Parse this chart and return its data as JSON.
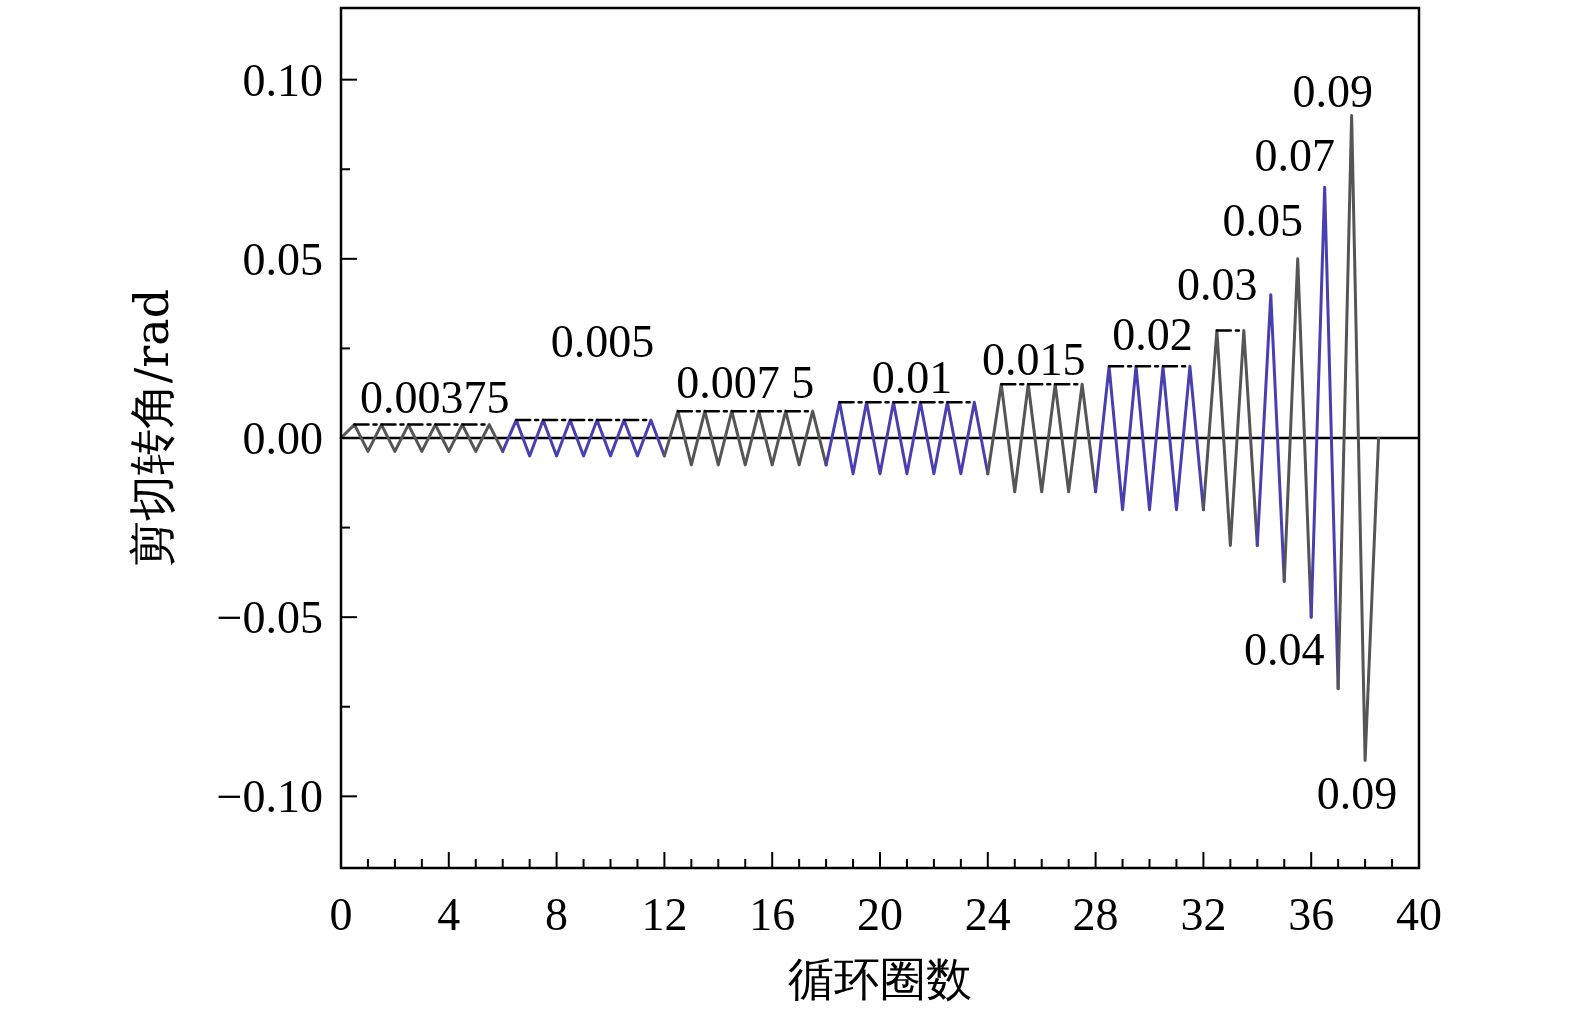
{
  "chart_data": {
    "type": "line",
    "xlabel": "循环圈数",
    "ylabel": "剪切转角/rad",
    "xlim": [
      0,
      40
    ],
    "ylim": [
      -0.12,
      0.12
    ],
    "xticks": [
      0,
      {
        "value": 1,
        "label": null
      },
      {
        "value": 2,
        "label": null
      },
      {
        "value": 3,
        "label": null
      },
      4,
      {
        "value": 5,
        "label": null
      },
      {
        "value": 6,
        "label": null
      },
      {
        "value": 7,
        "label": null
      },
      8,
      {
        "value": 9,
        "label": null
      },
      {
        "value": 10,
        "label": null
      },
      {
        "value": 11,
        "label": null
      },
      12,
      {
        "value": 13,
        "label": null
      },
      {
        "value": 14,
        "label": null
      },
      {
        "value": 15,
        "label": null
      },
      16,
      {
        "value": 17,
        "label": null
      },
      {
        "value": 18,
        "label": null
      },
      {
        "value": 19,
        "label": null
      },
      20,
      {
        "value": 21,
        "label": null
      },
      {
        "value": 22,
        "label": null
      },
      {
        "value": 23,
        "label": null
      },
      24,
      {
        "value": 25,
        "label": null
      },
      {
        "value": 26,
        "label": null
      },
      {
        "value": 27,
        "label": null
      },
      28,
      {
        "value": 29,
        "label": null
      },
      {
        "value": 30,
        "label": null
      },
      {
        "value": 31,
        "label": null
      },
      32,
      {
        "value": 33,
        "label": null
      },
      {
        "value": 34,
        "label": null
      },
      {
        "value": 35,
        "label": null
      },
      36,
      {
        "value": 37,
        "label": null
      },
      {
        "value": 38,
        "label": null
      },
      {
        "value": 39,
        "label": null
      },
      40
    ],
    "yticks": [
      {
        "value": -0.1,
        "label": "−0.10"
      },
      {
        "value": -0.075,
        "label": null
      },
      {
        "value": -0.05,
        "label": "−0.05"
      },
      {
        "value": -0.025,
        "label": null
      },
      {
        "value": 0,
        "label": "0.00"
      },
      {
        "value": 0.025,
        "label": null
      },
      {
        "value": 0.05,
        "label": "0.05"
      },
      {
        "value": 0.075,
        "label": null
      },
      {
        "value": 0.1,
        "label": "0.10"
      }
    ],
    "grid": false,
    "marker": "none",
    "ref_lines": [
      {
        "axis": "y",
        "value": 0,
        "color": "#000000",
        "line_style": "solid"
      }
    ],
    "series": [
      {
        "color": "#555555",
        "x": [
          0,
          0.5,
          1,
          1.5,
          2,
          2.5,
          3,
          3.5,
          4,
          4.5,
          5,
          5.5,
          6
        ],
        "values": [
          0,
          0.00375,
          -0.00375,
          0.00375,
          -0.00375,
          0.00375,
          -0.00375,
          0.00375,
          -0.00375,
          0.00375,
          -0.00375,
          0.00375,
          -0.00375
        ]
      },
      {
        "color": "#4a3fb0",
        "x": [
          6,
          6.5,
          7,
          7.5,
          8,
          8.5,
          9,
          9.5,
          10,
          10.5,
          11,
          11.5,
          12
        ],
        "values": [
          -0.00375,
          0.005,
          -0.005,
          0.005,
          -0.005,
          0.005,
          -0.005,
          0.005,
          -0.005,
          0.005,
          -0.005,
          0.005,
          -0.005
        ]
      },
      {
        "color": "#555555",
        "x": [
          12,
          12.5,
          13,
          13.5,
          14,
          14.5,
          15,
          15.5,
          16,
          16.5,
          17,
          17.5,
          18
        ],
        "values": [
          -0.005,
          0.0075,
          -0.0075,
          0.0075,
          -0.0075,
          0.0075,
          -0.0075,
          0.0075,
          -0.0075,
          0.0075,
          -0.0075,
          0.0075,
          -0.0075
        ]
      },
      {
        "color": "#4a3fb0",
        "x": [
          18,
          18.5,
          19,
          19.5,
          20,
          20.5,
          21,
          21.5,
          22,
          22.5,
          23,
          23.5,
          24
        ],
        "values": [
          -0.0075,
          0.01,
          -0.01,
          0.01,
          -0.01,
          0.01,
          -0.01,
          0.01,
          -0.01,
          0.01,
          -0.01,
          0.01,
          -0.01
        ]
      },
      {
        "color": "#555555",
        "x": [
          24,
          24.5,
          25,
          25.5,
          26,
          26.5,
          27,
          27.5,
          28
        ],
        "values": [
          -0.01,
          0.015,
          -0.015,
          0.015,
          -0.015,
          0.015,
          -0.015,
          0.015,
          -0.015
        ]
      },
      {
        "color": "#4a3fb0",
        "x": [
          28,
          28.5,
          29,
          29.5,
          30,
          30.5,
          31,
          31.5,
          32
        ],
        "values": [
          -0.015,
          0.02,
          -0.02,
          0.02,
          -0.02,
          0.02,
          -0.02,
          0.02,
          -0.02
        ]
      },
      {
        "color": "#555555",
        "x": [
          32,
          32.5,
          33,
          33.5,
          34
        ],
        "values": [
          -0.02,
          0.03,
          -0.03,
          0.03,
          -0.03
        ]
      },
      {
        "color": "#4a3fb0",
        "x": [
          34,
          34.5,
          35
        ],
        "values": [
          -0.03,
          0.04,
          -0.04
        ]
      },
      {
        "color": "#555555",
        "x": [
          35,
          35.5,
          36
        ],
        "values": [
          -0.04,
          0.05,
          -0.05
        ]
      },
      {
        "color": "#4a3fb0",
        "x": [
          36,
          36.5,
          37
        ],
        "values": [
          -0.05,
          0.07,
          -0.07
        ]
      },
      {
        "color": "#555555",
        "x": [
          37,
          37.5,
          38,
          38.5
        ],
        "values": [
          -0.07,
          0.09,
          -0.09,
          0
        ]
      },
      {
        "color": "#000000",
        "line_style": "dashed",
        "x": [
          0.5,
          5.5
        ],
        "values": [
          0.00375,
          0.00375
        ]
      },
      {
        "color": "#000000",
        "line_style": "dashed",
        "x": [
          6.5,
          11.5
        ],
        "values": [
          0.005,
          0.005
        ]
      },
      {
        "color": "#000000",
        "line_style": "dashed",
        "x": [
          12.5,
          17.5
        ],
        "values": [
          0.0075,
          0.0075
        ]
      },
      {
        "color": "#000000",
        "line_style": "dashed",
        "x": [
          18.5,
          23.5
        ],
        "values": [
          0.01,
          0.01
        ]
      },
      {
        "color": "#000000",
        "line_style": "dashed",
        "x": [
          24.5,
          27.5
        ],
        "values": [
          0.015,
          0.015
        ]
      },
      {
        "color": "#000000",
        "line_style": "dashed",
        "x": [
          28.5,
          31.5
        ],
        "values": [
          0.02,
          0.02
        ]
      },
      {
        "color": "#000000",
        "line_style": "dashed",
        "x": [
          32.5,
          33.5
        ],
        "values": [
          0.03,
          0.03
        ]
      }
    ],
    "annotations": [
      {
        "text": "0.00375",
        "x": 3,
        "y": 0.00375
      },
      {
        "text": "0.005",
        "x": 9,
        "y": 0.005
      },
      {
        "text": "0.007 5",
        "x": 15,
        "y": 0.0075
      },
      {
        "text": "0.01",
        "x": 21,
        "y": 0.01
      },
      {
        "text": "0.015",
        "x": 26,
        "y": 0.015
      },
      {
        "text": "0.02",
        "x": 30,
        "y": 0.02
      },
      {
        "text": "0.03",
        "x": 33,
        "y": 0.03
      },
      {
        "text": "0.05",
        "x": 35.5,
        "y": 0.05
      },
      {
        "text": "0.07",
        "x": 36.5,
        "y": 0.07
      },
      {
        "text": "0.09",
        "x": 37.5,
        "y": 0.09
      },
      {
        "text": "0.04",
        "x": 35,
        "y": -0.04
      },
      {
        "text": "0.09",
        "x": 38,
        "y": -0.09
      }
    ]
  }
}
